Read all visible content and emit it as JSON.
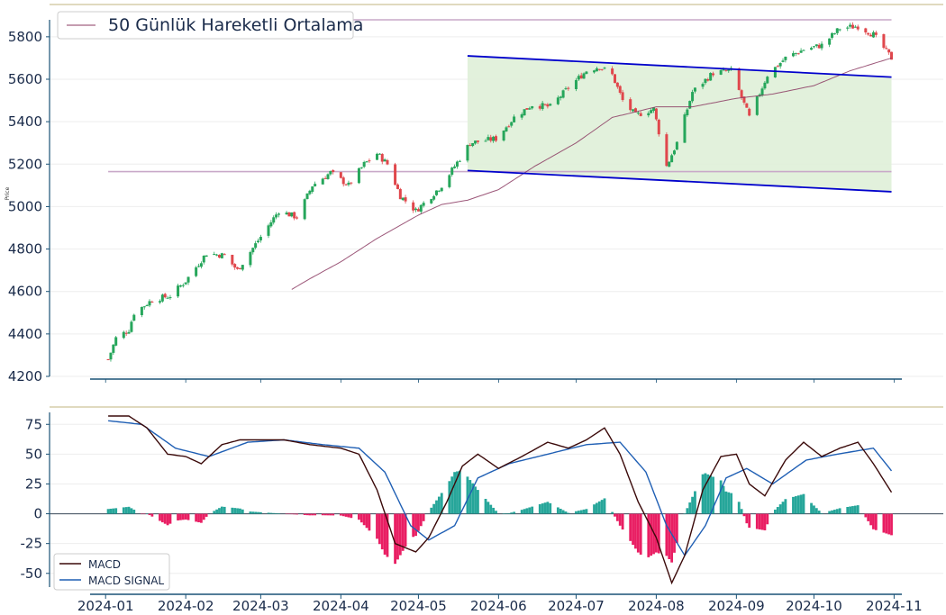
{
  "colors": {
    "up": "#26a65b",
    "down": "#e0474c",
    "ma": "#8b3a62",
    "channel": "#0000cc",
    "channel_fill": "#dff0d8",
    "hline": "#c9a9c9",
    "macd": "#3b0a0a",
    "signal": "#1f5fb4",
    "hist_pos": "#26a69a",
    "hist_neg": "#e91e63",
    "axis": "#1a5276",
    "top_line": "#d6ceaa"
  },
  "chart_data": [
    {
      "type": "candlestick",
      "ylabel": "Price",
      "ylim": [
        4200,
        5880
      ],
      "yticks": [
        4200,
        4400,
        4600,
        4800,
        5000,
        5200,
        5400,
        5600,
        5800
      ],
      "xlim": [
        "2023-12-26",
        "2024-11-04"
      ],
      "xticks": [
        "2024-01",
        "2024-02",
        "2024-03",
        "2024-04",
        "2024-05",
        "2024-06",
        "2024-07",
        "2024-08",
        "2024-09",
        "2024-10",
        "2024-11"
      ],
      "legend": {
        "label": "50 Günlük Hareketli Ortalama",
        "position": "top-left"
      },
      "grid": true,
      "close_keypoints": [
        [
          "2024-01-02",
          4280
        ],
        [
          "2024-01-05",
          4380
        ],
        [
          "2024-01-10",
          4420
        ],
        [
          "2024-01-12",
          4500
        ],
        [
          "2024-01-19",
          4560
        ],
        [
          "2024-01-26",
          4580
        ],
        [
          "2024-02-01",
          4650
        ],
        [
          "2024-02-09",
          4780
        ],
        [
          "2024-02-16",
          4770
        ],
        [
          "2024-02-21",
          4700
        ],
        [
          "2024-02-29",
          4840
        ],
        [
          "2024-03-08",
          4980
        ],
        [
          "2024-03-15",
          4950
        ],
        [
          "2024-03-21",
          5100
        ],
        [
          "2024-03-28",
          5160
        ],
        [
          "2024-04-04",
          5100
        ],
        [
          "2024-04-10",
          5200
        ],
        [
          "2024-04-15",
          5250
        ],
        [
          "2024-04-19",
          5200
        ],
        [
          "2024-04-24",
          5050
        ],
        [
          "2024-04-30",
          4980
        ],
        [
          "2024-05-06",
          5050
        ],
        [
          "2024-05-10",
          5100
        ],
        [
          "2024-05-15",
          5190
        ],
        [
          "2024-05-21",
          5300
        ],
        [
          "2024-05-31",
          5320
        ],
        [
          "2024-06-07",
          5420
        ],
        [
          "2024-06-14",
          5480
        ],
        [
          "2024-06-21",
          5470
        ],
        [
          "2024-06-28",
          5560
        ],
        [
          "2024-07-05",
          5640
        ],
        [
          "2024-07-10",
          5660
        ],
        [
          "2024-07-15",
          5620
        ],
        [
          "2024-07-19",
          5500
        ],
        [
          "2024-07-24",
          5430
        ],
        [
          "2024-07-31",
          5460
        ],
        [
          "2024-08-05",
          5190
        ],
        [
          "2024-08-09",
          5300
        ],
        [
          "2024-08-15",
          5540
        ],
        [
          "2024-08-23",
          5630
        ],
        [
          "2024-08-30",
          5640
        ],
        [
          "2024-09-06",
          5420
        ],
        [
          "2024-09-13",
          5620
        ],
        [
          "2024-09-20",
          5700
        ],
        [
          "2024-09-27",
          5740
        ],
        [
          "2024-10-04",
          5760
        ],
        [
          "2024-10-11",
          5840
        ],
        [
          "2024-10-18",
          5850
        ],
        [
          "2024-10-24",
          5810
        ],
        [
          "2024-10-31",
          5700
        ]
      ],
      "ma50_keypoints": [
        [
          "2024-03-13",
          4610
        ],
        [
          "2024-03-20",
          4660
        ],
        [
          "2024-04-01",
          4740
        ],
        [
          "2024-04-15",
          4850
        ],
        [
          "2024-05-01",
          4960
        ],
        [
          "2024-05-10",
          5010
        ],
        [
          "2024-05-20",
          5030
        ],
        [
          "2024-06-01",
          5080
        ],
        [
          "2024-06-15",
          5190
        ],
        [
          "2024-07-01",
          5300
        ],
        [
          "2024-07-15",
          5420
        ],
        [
          "2024-08-01",
          5470
        ],
        [
          "2024-08-15",
          5470
        ],
        [
          "2024-09-01",
          5510
        ],
        [
          "2024-09-15",
          5530
        ],
        [
          "2024-10-01",
          5570
        ],
        [
          "2024-10-15",
          5640
        ],
        [
          "2024-10-31",
          5700
        ]
      ],
      "channel": {
        "x0": "2024-05-20",
        "x1": "2024-10-31",
        "upper": [
          5710,
          5610
        ],
        "lower": [
          5170,
          5070
        ]
      },
      "hlines": [
        {
          "x0": "2024-01-02",
          "x1": "2024-10-31",
          "y": 5165
        },
        {
          "x0": "2024-01-02",
          "x1": "2024-10-31",
          "y": 5880
        }
      ],
      "baseline": 4185
    },
    {
      "type": "line",
      "ylim": [
        -60,
        82
      ],
      "yticks": [
        -50,
        -25,
        0,
        25,
        50,
        75
      ],
      "xticks": [
        "2024-01",
        "2024-02",
        "2024-03",
        "2024-04",
        "2024-05",
        "2024-06",
        "2024-07",
        "2024-08",
        "2024-09",
        "2024-10",
        "2024-11"
      ],
      "legend": {
        "position": "bottom-left"
      },
      "series": [
        {
          "name": "MACD",
          "keypoints": [
            [
              "2024-01-02",
              82
            ],
            [
              "2024-01-10",
              82
            ],
            [
              "2024-01-17",
              72
            ],
            [
              "2024-01-25",
              50
            ],
            [
              "2024-02-01",
              48
            ],
            [
              "2024-02-07",
              42
            ],
            [
              "2024-02-15",
              58
            ],
            [
              "2024-02-22",
              62
            ],
            [
              "2024-03-01",
              62
            ],
            [
              "2024-03-10",
              62
            ],
            [
              "2024-03-20",
              58
            ],
            [
              "2024-04-01",
              55
            ],
            [
              "2024-04-08",
              50
            ],
            [
              "2024-04-15",
              20
            ],
            [
              "2024-04-22",
              -25
            ],
            [
              "2024-04-30",
              -32
            ],
            [
              "2024-05-05",
              -20
            ],
            [
              "2024-05-12",
              10
            ],
            [
              "2024-05-18",
              40
            ],
            [
              "2024-05-24",
              50
            ],
            [
              "2024-06-01",
              38
            ],
            [
              "2024-06-10",
              48
            ],
            [
              "2024-06-20",
              60
            ],
            [
              "2024-06-28",
              55
            ],
            [
              "2024-07-05",
              62
            ],
            [
              "2024-07-12",
              72
            ],
            [
              "2024-07-18",
              50
            ],
            [
              "2024-07-25",
              10
            ],
            [
              "2024-08-01",
              -20
            ],
            [
              "2024-08-07",
              -58
            ],
            [
              "2024-08-12",
              -35
            ],
            [
              "2024-08-19",
              20
            ],
            [
              "2024-08-26",
              48
            ],
            [
              "2024-09-01",
              50
            ],
            [
              "2024-09-06",
              25
            ],
            [
              "2024-09-12",
              15
            ],
            [
              "2024-09-20",
              45
            ],
            [
              "2024-09-27",
              60
            ],
            [
              "2024-10-04",
              48
            ],
            [
              "2024-10-11",
              55
            ],
            [
              "2024-10-18",
              60
            ],
            [
              "2024-10-24",
              42
            ],
            [
              "2024-10-31",
              18
            ]
          ]
        },
        {
          "name": "MACD SIGNAL",
          "keypoints": [
            [
              "2024-01-02",
              78
            ],
            [
              "2024-01-15",
              75
            ],
            [
              "2024-01-28",
              55
            ],
            [
              "2024-02-10",
              48
            ],
            [
              "2024-02-25",
              60
            ],
            [
              "2024-03-10",
              62
            ],
            [
              "2024-03-25",
              58
            ],
            [
              "2024-04-08",
              55
            ],
            [
              "2024-04-18",
              35
            ],
            [
              "2024-04-28",
              -10
            ],
            [
              "2024-05-05",
              -22
            ],
            [
              "2024-05-15",
              -10
            ],
            [
              "2024-05-24",
              30
            ],
            [
              "2024-06-05",
              42
            ],
            [
              "2024-06-20",
              50
            ],
            [
              "2024-07-05",
              58
            ],
            [
              "2024-07-18",
              60
            ],
            [
              "2024-07-28",
              35
            ],
            [
              "2024-08-05",
              -10
            ],
            [
              "2024-08-12",
              -35
            ],
            [
              "2024-08-20",
              -10
            ],
            [
              "2024-08-28",
              30
            ],
            [
              "2024-09-05",
              38
            ],
            [
              "2024-09-15",
              25
            ],
            [
              "2024-09-28",
              45
            ],
            [
              "2024-10-10",
              50
            ],
            [
              "2024-10-24",
              55
            ],
            [
              "2024-10-31",
              36
            ]
          ]
        }
      ]
    }
  ]
}
